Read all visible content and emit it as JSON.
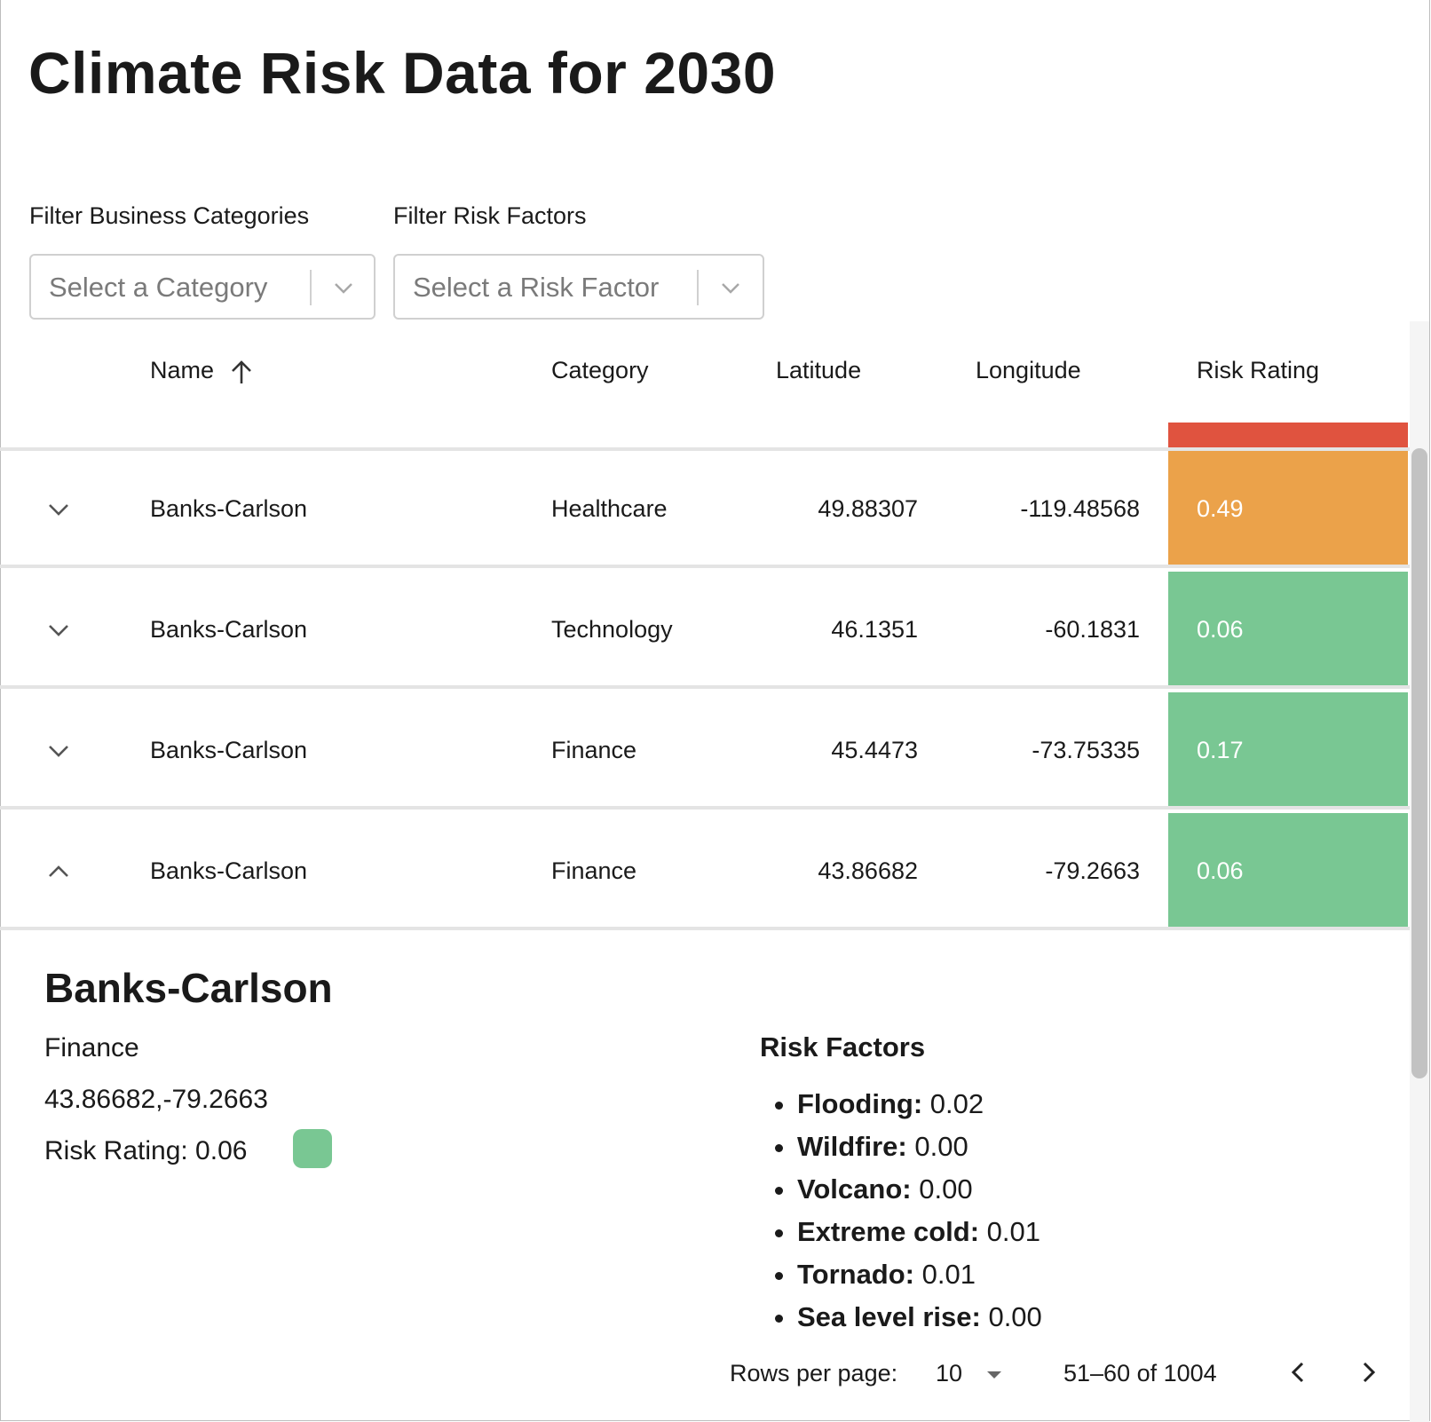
{
  "page": {
    "title": "Climate Risk Data for 2030"
  },
  "filters": {
    "category_label": "Filter Business Categories",
    "category_placeholder": "Select a Category",
    "risk_label": "Filter Risk Factors",
    "risk_placeholder": "Select a Risk Factor"
  },
  "table": {
    "columns": {
      "name": "Name",
      "category": "Category",
      "latitude": "Latitude",
      "longitude": "Longitude",
      "risk_rating": "Risk Rating"
    },
    "sort": {
      "column": "name",
      "direction": "ascending",
      "icon": "arrow-up-icon"
    },
    "header_rating_color": "#e0533f",
    "rows": [
      {
        "name": "Banks-Carlson",
        "category": "Healthcare",
        "latitude": "49.88307",
        "longitude": "-119.48568",
        "rating": "0.49",
        "color": "#eba24a",
        "expanded": false
      },
      {
        "name": "Banks-Carlson",
        "category": "Technology",
        "latitude": "46.1351",
        "longitude": "-60.1831",
        "rating": "0.06",
        "color": "#79c793",
        "expanded": false
      },
      {
        "name": "Banks-Carlson",
        "category": "Finance",
        "latitude": "45.4473",
        "longitude": "-73.75335",
        "rating": "0.17",
        "color": "#79c793",
        "expanded": false
      },
      {
        "name": "Banks-Carlson",
        "category": "Finance",
        "latitude": "43.86682",
        "longitude": "-79.2663",
        "rating": "0.06",
        "color": "#79c793",
        "expanded": true
      }
    ]
  },
  "detail": {
    "name": "Banks-Carlson",
    "category": "Finance",
    "coordinates": "43.86682,-79.2663",
    "risk_rating_text": "Risk Rating: 0.06",
    "risk_color": "#79c793",
    "risk_factors_title": "Risk Factors",
    "risk_factors": [
      {
        "label": "Flooding:",
        "value": "0.02"
      },
      {
        "label": "Wildfire:",
        "value": "0.00"
      },
      {
        "label": "Volcano:",
        "value": "0.00"
      },
      {
        "label": "Extreme cold:",
        "value": "0.01"
      },
      {
        "label": "Tornado:",
        "value": "0.01"
      },
      {
        "label": "Sea level rise:",
        "value": "0.00"
      }
    ]
  },
  "pagination": {
    "rows_per_page_label": "Rows per page:",
    "rows_per_page_value": "10",
    "range": "51–60 of 1004",
    "prev_icon": "chevron-left-icon",
    "next_icon": "chevron-right-icon"
  }
}
